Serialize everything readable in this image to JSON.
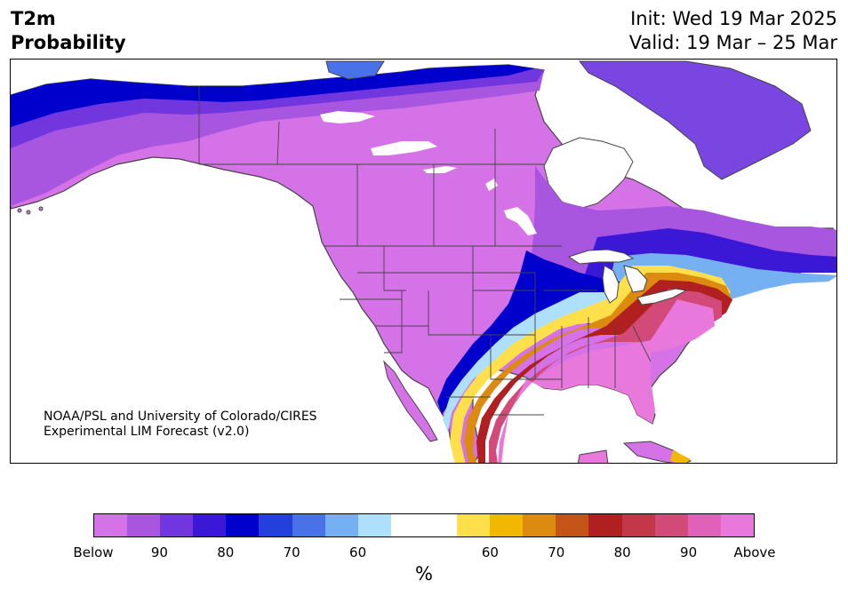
{
  "header": {
    "variable": "T2m",
    "product": "Probability",
    "init": "Init: Wed 19 Mar 2025",
    "valid": "Valid: 19 Mar – 25 Mar"
  },
  "credit": {
    "line1": "NOAA/PSL and University of Colorado/CIRES",
    "line2": "Experimental LIM Forecast (v2.0)"
  },
  "colorbar": {
    "unit": "%",
    "colors": [
      "#d672e8",
      "#a855e0",
      "#7236df",
      "#3b18d6",
      "#0000cc",
      "#2340dc",
      "#4a72e8",
      "#74b0f2",
      "#aee0fc",
      "#ffffff",
      "#ffffff",
      "#ffe04a",
      "#f2b800",
      "#dd8a10",
      "#c45418",
      "#b02020",
      "#c23848",
      "#d24a78",
      "#df62b8",
      "#e878dc"
    ],
    "tick_labels": [
      "Below",
      "90",
      "80",
      "70",
      "60",
      "60",
      "70",
      "80",
      "90",
      "Above"
    ]
  },
  "map": {
    "region": "North America",
    "colors": {
      "land_default": "#d672e8",
      "ocean": "#ffffff",
      "lakes": "#ffffff",
      "borders": "#444444"
    }
  }
}
